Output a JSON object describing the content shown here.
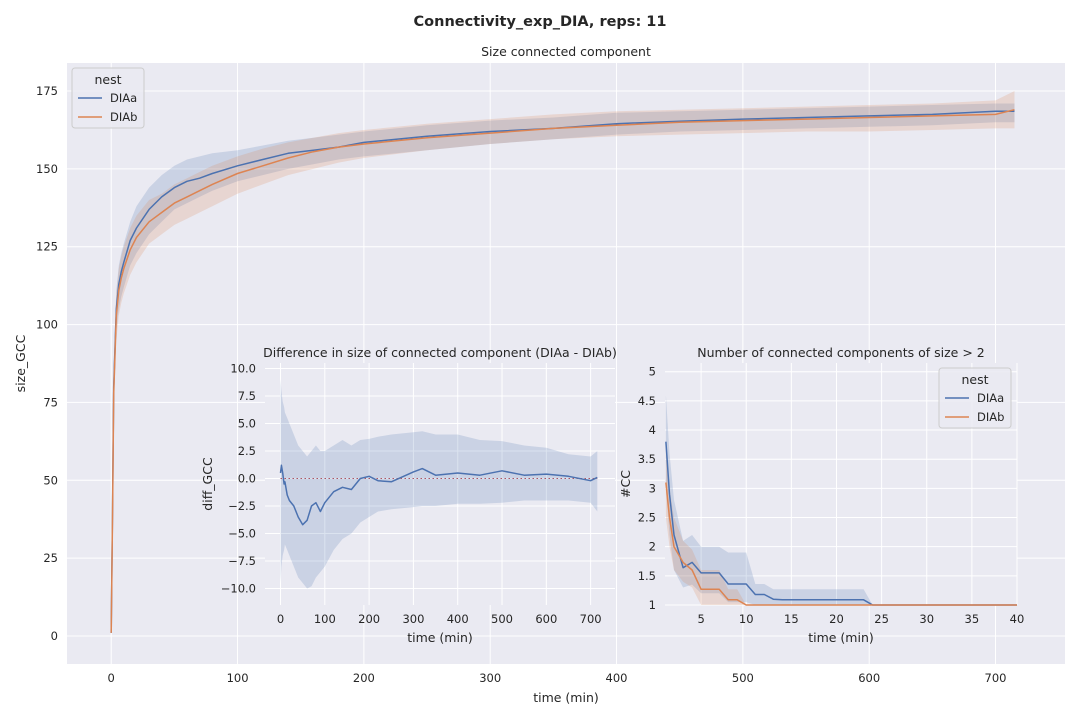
{
  "figure": {
    "suptitle": "Connectivity_exp_DIA, reps: 11",
    "colors": {
      "DIAa": "#4c72b0",
      "DIAb": "#dd8452",
      "background": "#eaeaf2",
      "grid": "#ffffff",
      "zero_line": "#c44e52"
    }
  },
  "chart_data": [
    {
      "id": "main",
      "type": "line",
      "title": "Size connected component",
      "xlabel": "time (min)",
      "ylabel": "size_GCC",
      "xlim": [
        -35,
        755
      ],
      "ylim": [
        -9,
        184
      ],
      "xticks": [
        0,
        100,
        200,
        300,
        400,
        500,
        600,
        700
      ],
      "yticks": [
        0,
        25,
        50,
        75,
        100,
        125,
        150,
        175
      ],
      "legend": {
        "title": "nest",
        "location": "upper left",
        "entries": [
          "DIAa",
          "DIAb"
        ]
      },
      "series": [
        {
          "name": "DIAa",
          "x": [
            0,
            1,
            2,
            4,
            6,
            8,
            10,
            15,
            20,
            30,
            40,
            50,
            60,
            70,
            80,
            100,
            120,
            140,
            160,
            180,
            200,
            250,
            300,
            350,
            400,
            450,
            500,
            550,
            600,
            650,
            700,
            715
          ],
          "y": [
            1,
            40,
            80,
            105,
            113,
            117,
            120,
            127,
            131,
            137,
            141,
            144,
            146,
            147,
            148.5,
            151,
            153,
            155,
            156,
            157,
            158.5,
            160.5,
            162,
            163,
            164.5,
            165.3,
            166,
            166.5,
            167,
            167.5,
            168.5,
            168.5
          ],
          "ci_low": [
            1,
            35,
            72,
            98,
            105,
            109,
            112,
            119,
            123,
            129,
            133,
            137,
            139,
            141,
            143,
            146,
            148,
            150,
            151.5,
            153,
            154,
            156,
            158,
            159.5,
            161,
            162,
            162.5,
            163,
            163.5,
            164,
            165,
            165
          ],
          "ci_high": [
            1,
            45,
            88,
            111,
            119,
            123,
            126,
            133,
            138,
            144,
            148,
            151,
            153,
            154,
            155,
            156,
            157.5,
            159,
            160,
            161,
            162,
            164,
            165.5,
            166.5,
            168,
            168.5,
            169,
            169.5,
            170,
            170.5,
            171,
            171
          ]
        },
        {
          "name": "DIAb",
          "x": [
            0,
            1,
            2,
            4,
            6,
            8,
            10,
            15,
            20,
            30,
            40,
            50,
            60,
            70,
            80,
            100,
            120,
            140,
            160,
            180,
            200,
            250,
            300,
            350,
            400,
            450,
            500,
            550,
            600,
            650,
            700,
            715
          ],
          "y": [
            1,
            38,
            78,
            103,
            111,
            115,
            118,
            124,
            128,
            133,
            136,
            139,
            141,
            143,
            145,
            148.5,
            151,
            153.5,
            155.5,
            157,
            158,
            160,
            161.5,
            163,
            164,
            165,
            165.5,
            166,
            166.5,
            167,
            167.5,
            169
          ],
          "ci_low": [
            1,
            33,
            70,
            95,
            103,
            107,
            110,
            116,
            120,
            126,
            129,
            132,
            134,
            136,
            138,
            142,
            145,
            148,
            150,
            152,
            153.5,
            156,
            158,
            159.5,
            160.5,
            161,
            161.5,
            162,
            162,
            162.5,
            163,
            163
          ],
          "ci_high": [
            1,
            43,
            86,
            110,
            118,
            122,
            125,
            131,
            135,
            140,
            142,
            145,
            147,
            149,
            151,
            154,
            156.5,
            158.5,
            160,
            161.5,
            162.5,
            164.5,
            166,
            167.5,
            168.5,
            169,
            169.5,
            170,
            170.5,
            171,
            172,
            175
          ]
        }
      ]
    },
    {
      "id": "diff",
      "type": "line",
      "title": "Difference in size of connected component (DIAa - DIAb)",
      "xlabel": "time (min)",
      "ylabel": "diff_GCC",
      "xlim": [
        -35,
        755
      ],
      "ylim": [
        -11.5,
        10.5
      ],
      "xticks": [
        0,
        100,
        200,
        300,
        400,
        500,
        600,
        700
      ],
      "yticks": [
        -10.0,
        -7.5,
        -5.0,
        -2.5,
        0.0,
        2.5,
        5.0,
        7.5,
        10.0
      ],
      "tick_labels_y": [
        "−10.0",
        "−7.5",
        "−5.0",
        "−2.5",
        "0.0",
        "2.5",
        "5.0",
        "7.5",
        "10.0"
      ],
      "reference_line_y": 0,
      "series": [
        {
          "name": "DIAa",
          "x": [
            0,
            2,
            5,
            8,
            10,
            15,
            20,
            30,
            40,
            50,
            60,
            70,
            80,
            90,
            100,
            120,
            140,
            160,
            180,
            200,
            220,
            250,
            300,
            320,
            350,
            400,
            450,
            500,
            550,
            600,
            650,
            700,
            715
          ],
          "y": [
            0.5,
            1.2,
            0.5,
            -0.5,
            -0.3,
            -1.5,
            -2.0,
            -2.5,
            -3.5,
            -4.2,
            -3.8,
            -2.5,
            -2.2,
            -3.0,
            -2.2,
            -1.2,
            -0.8,
            -1.0,
            0.0,
            0.2,
            -0.2,
            -0.3,
            0.6,
            0.9,
            0.3,
            0.5,
            0.3,
            0.7,
            0.3,
            0.4,
            0.2,
            -0.2,
            0.1
          ],
          "ci_low": [
            -9.5,
            -8.0,
            -7.0,
            -6.5,
            -6.0,
            -6.5,
            -7.0,
            -8.0,
            -9.0,
            -9.5,
            -10.0,
            -9.8,
            -9.0,
            -8.5,
            -8.0,
            -6.5,
            -5.5,
            -5.0,
            -4.0,
            -3.5,
            -3.0,
            -2.8,
            -2.6,
            -2.5,
            -2.5,
            -2.3,
            -2.3,
            -2.2,
            -2.0,
            -2.0,
            -2.0,
            -2.2,
            -3.0
          ],
          "ci_high": [
            9.0,
            8.0,
            7.0,
            6.5,
            6.0,
            5.5,
            5.0,
            4.0,
            3.0,
            2.5,
            2.0,
            2.5,
            3.0,
            2.5,
            2.5,
            3.0,
            3.5,
            3.0,
            3.5,
            3.6,
            3.8,
            4.0,
            4.2,
            4.3,
            4.0,
            4.0,
            3.5,
            3.4,
            3.0,
            2.8,
            2.2,
            2.0,
            2.5
          ]
        }
      ]
    },
    {
      "id": "count",
      "type": "line",
      "title": "Number of connected components of size > 2",
      "xlabel": "time (min)",
      "ylabel": "#CC",
      "xlim": [
        1,
        40
      ],
      "ylim": [
        1.0,
        5.15
      ],
      "xticks": [
        5,
        10,
        15,
        20,
        25,
        30,
        35,
        40
      ],
      "yticks": [
        1.0,
        1.5,
        2.0,
        2.5,
        3.0,
        3.5,
        4.0,
        4.5,
        5.0
      ],
      "legend": {
        "title": "nest",
        "location": "upper right",
        "entries": [
          "DIAa",
          "DIAb"
        ]
      },
      "series": [
        {
          "name": "DIAa",
          "x": [
            1.1,
            1.5,
            2,
            3,
            4,
            5,
            6,
            7,
            8,
            9,
            10,
            11,
            12,
            13,
            14,
            15,
            20,
            22,
            23,
            24,
            25,
            40
          ],
          "y": [
            3.8,
            2.9,
            2.2,
            1.64,
            1.73,
            1.55,
            1.55,
            1.55,
            1.36,
            1.36,
            1.36,
            1.18,
            1.18,
            1.1,
            1.09,
            1.09,
            1.09,
            1.09,
            1.09,
            1.0,
            1.0,
            1.0
          ],
          "ci_low": [
            3.0,
            2.2,
            1.6,
            1.3,
            1.35,
            1.2,
            1.2,
            1.2,
            1.05,
            1.05,
            1.05,
            1.0,
            1.0,
            1.0,
            1.0,
            1.0,
            1.0,
            1.0,
            1.0,
            1.0,
            1.0,
            1.0
          ],
          "ci_high": [
            4.6,
            3.6,
            2.8,
            2.1,
            2.2,
            2.0,
            2.0,
            2.0,
            1.9,
            1.9,
            1.9,
            1.36,
            1.36,
            1.27,
            1.27,
            1.27,
            1.27,
            1.27,
            1.27,
            1.0,
            1.0,
            1.0
          ]
        },
        {
          "name": "DIAb",
          "x": [
            1.1,
            1.5,
            2,
            3,
            4,
            5,
            6,
            7,
            8,
            9,
            10,
            11,
            40
          ],
          "y": [
            3.1,
            2.5,
            2.0,
            1.73,
            1.6,
            1.27,
            1.27,
            1.27,
            1.09,
            1.09,
            1.0,
            1.0,
            1.0
          ],
          "ci_low": [
            2.5,
            2.0,
            1.6,
            1.4,
            1.3,
            1.0,
            1.0,
            1.0,
            1.0,
            1.0,
            1.0,
            1.0,
            1.0
          ],
          "ci_high": [
            3.7,
            3.0,
            2.5,
            2.1,
            1.95,
            1.6,
            1.6,
            1.6,
            1.27,
            1.27,
            1.0,
            1.0,
            1.0
          ]
        }
      ]
    }
  ]
}
